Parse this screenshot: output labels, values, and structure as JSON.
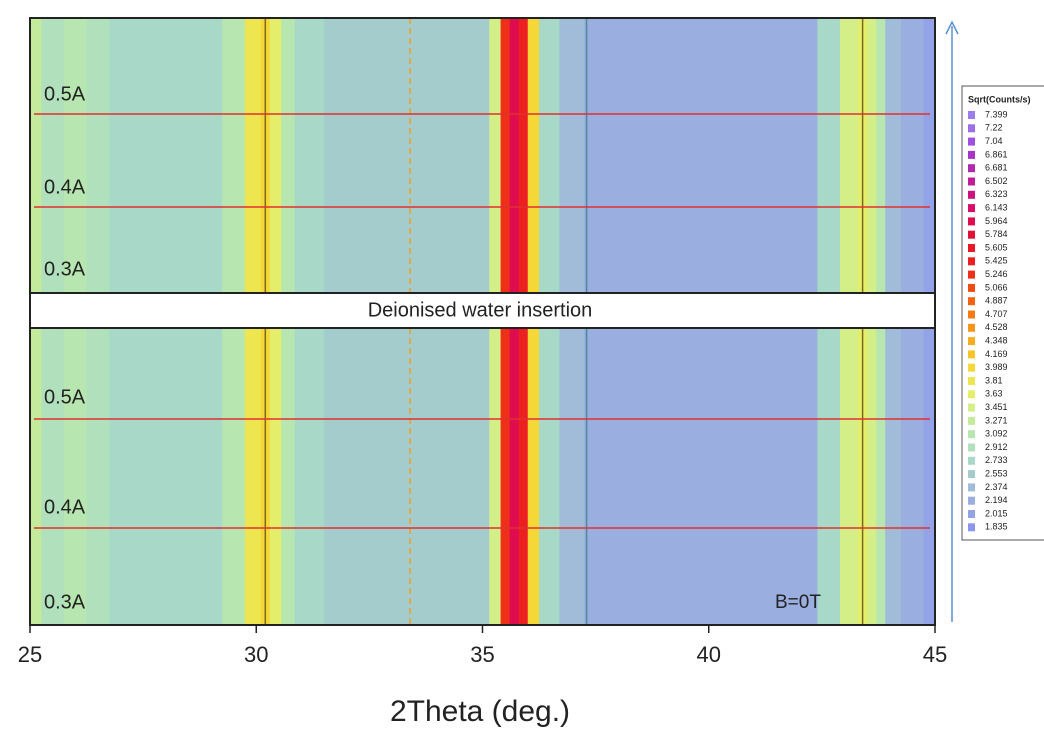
{
  "chart_data": {
    "type": "heatmap",
    "x_label": "2Theta (deg.)",
    "xlim": [
      25,
      45
    ],
    "xticks": [
      25,
      30,
      35,
      40,
      45
    ],
    "x": [
      25,
      25.5,
      26,
      26.5,
      27,
      28,
      29,
      29.5,
      30,
      30.2,
      30.4,
      30.7,
      31,
      32,
      33,
      34,
      35,
      35.3,
      35.5,
      35.7,
      35.9,
      36.1,
      36.4,
      37,
      37.5,
      38,
      40,
      42,
      42.8,
      43,
      43.2,
      43.4,
      43.6,
      43.8,
      44,
      44.5,
      45
    ],
    "values": [
      3.3,
      3.0,
      3.1,
      3.0,
      2.9,
      2.8,
      2.8,
      3.2,
      3.9,
      4.1,
      3.8,
      3.2,
      2.8,
      2.7,
      2.6,
      2.6,
      2.7,
      3.6,
      5.4,
      6.0,
      5.6,
      4.0,
      2.8,
      2.5,
      2.3,
      2.2,
      2.2,
      2.3,
      2.8,
      3.5,
      3.6,
      3.7,
      3.6,
      3.1,
      2.4,
      2.2,
      2.1
    ],
    "vlines": [
      {
        "x": 30.2,
        "color": "#7a6a20",
        "dash": false
      },
      {
        "x": 33.4,
        "color": "#f0a020",
        "dash": true
      },
      {
        "x": 37.3,
        "color": "#4a8a9a",
        "dash": false
      },
      {
        "x": 43.4,
        "color": "#7a6a20",
        "dash": false
      }
    ],
    "separator_label": "Deionised water insertion",
    "panels": [
      {
        "row_labels": [
          "0.5A",
          "0.4A",
          "0.3A"
        ]
      },
      {
        "row_labels": [
          "0.5A",
          "0.4A",
          "0.3A"
        ],
        "annotation": "B=0T"
      }
    ],
    "colorbar": {
      "title": "Sqrt(Counts/s)",
      "levels": [
        7.399,
        7.22,
        7.04,
        6.861,
        6.681,
        6.502,
        6.323,
        6.143,
        5.964,
        5.784,
        5.605,
        5.425,
        5.246,
        5.066,
        4.887,
        4.707,
        4.528,
        4.348,
        4.169,
        3.989,
        3.81,
        3.63,
        3.451,
        3.271,
        3.092,
        2.912,
        2.733,
        2.553,
        2.374,
        2.194,
        2.015,
        1.835
      ],
      "colors": [
        "#9a7ef0",
        "#9c6ee8",
        "#a050e0",
        "#a835c8",
        "#b02ab0",
        "#c01e98",
        "#cc1480",
        "#d80f68",
        "#e00c50",
        "#e41038",
        "#e81828",
        "#ec2020",
        "#ee3018",
        "#f04a14",
        "#f26414",
        "#f47c18",
        "#f6941c",
        "#f8ac20",
        "#f9c428",
        "#f5d838",
        "#eee650",
        "#e4ee6a",
        "#d4ef88",
        "#c4eb9c",
        "#b8e6b0",
        "#b0e0bc",
        "#a8d8c8",
        "#a4cccc",
        "#a0bcd8",
        "#9aaee0",
        "#94a2e8",
        "#8c96ee"
      ]
    }
  }
}
